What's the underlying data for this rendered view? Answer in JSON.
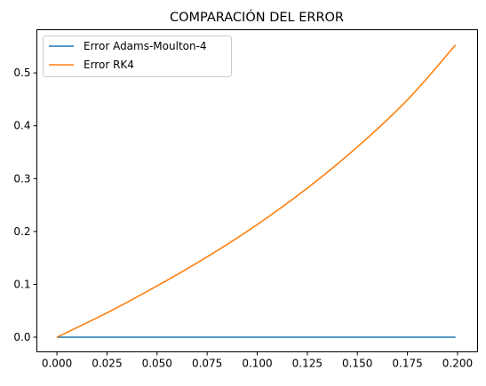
{
  "chart_data": {
    "type": "line",
    "title": "COMPARACIÓN DEL ERROR",
    "xlabel": "",
    "ylabel": "",
    "xlim": [
      -0.01,
      0.21
    ],
    "ylim": [
      -0.0277,
      0.5817
    ],
    "xticks": [
      0.0,
      0.025,
      0.05,
      0.075,
      0.1,
      0.125,
      0.15,
      0.175,
      0.2
    ],
    "xtick_labels": [
      "0.000",
      "0.025",
      "0.050",
      "0.075",
      "0.100",
      "0.125",
      "0.150",
      "0.175",
      "0.200"
    ],
    "yticks": [
      0.0,
      0.1,
      0.2,
      0.3,
      0.4,
      0.5
    ],
    "ytick_labels": [
      "0.0",
      "0.1",
      "0.2",
      "0.3",
      "0.4",
      "0.5"
    ],
    "grid": false,
    "legend_position": "top-left",
    "series": [
      {
        "name": "Error Adams-Moulton-4",
        "color": "#1f77b4",
        "x": [
          0.0,
          0.025,
          0.05,
          0.075,
          0.1,
          0.125,
          0.15,
          0.175,
          0.199
        ],
        "y": [
          0.0,
          0.0,
          0.0,
          0.0,
          0.0,
          0.0,
          0.0,
          0.0,
          0.0
        ]
      },
      {
        "name": "Error RK4",
        "color": "#ff7f0e",
        "x": [
          0.0,
          0.025,
          0.05,
          0.075,
          0.1,
          0.125,
          0.15,
          0.175,
          0.199
        ],
        "y": [
          0.0,
          0.046,
          0.097,
          0.152,
          0.213,
          0.282,
          0.36,
          0.449,
          0.553
        ]
      }
    ]
  }
}
